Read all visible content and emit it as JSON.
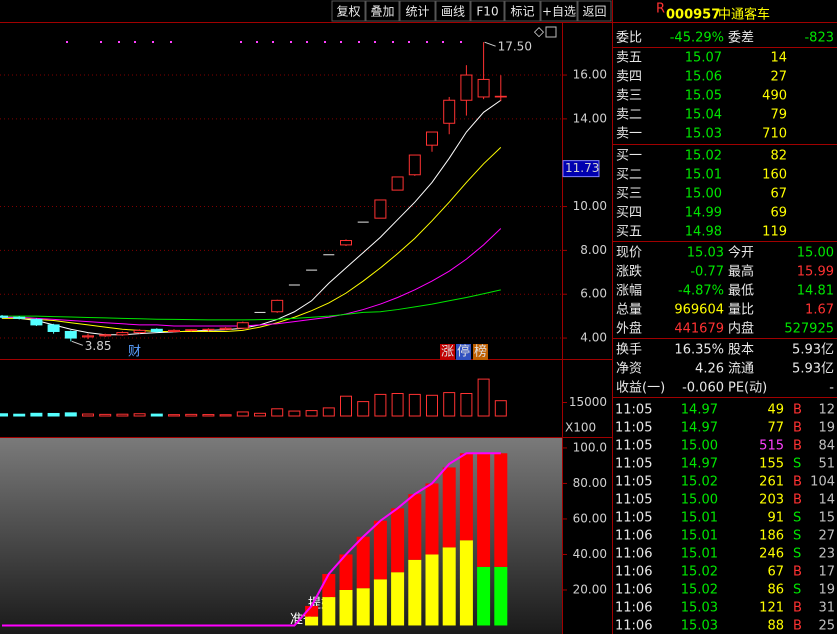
{
  "toolbar": [
    "复权",
    "叠加",
    "统计",
    "画线",
    "F10",
    "标记",
    "+自选",
    "返回"
  ],
  "main": {
    "ylim": [
      3.09,
      18.42
    ],
    "yticks": [
      {
        "value": 4,
        "label": "4.00"
      },
      {
        "value": 6,
        "label": "6.00"
      },
      {
        "value": 8,
        "label": "8.00"
      },
      {
        "value": 10,
        "label": "10.00"
      },
      {
        "value": 14,
        "label": "14.00"
      },
      {
        "value": 16,
        "label": "16.00"
      }
    ],
    "cursor": {
      "value": 11.73,
      "label": "11.73"
    },
    "candles": [
      {
        "open": 5.0,
        "high": 5.05,
        "low": 4.9,
        "close": 4.95
      },
      {
        "open": 4.95,
        "high": 5.0,
        "low": 4.85,
        "close": 4.9
      },
      {
        "open": 4.85,
        "high": 4.9,
        "low": 4.55,
        "close": 4.6
      },
      {
        "open": 4.6,
        "high": 4.65,
        "low": 4.2,
        "close": 4.3
      },
      {
        "open": 4.3,
        "high": 4.35,
        "low": 3.85,
        "close": 4.0
      },
      {
        "open": 4.05,
        "high": 4.2,
        "low": 3.95,
        "close": 4.1
      },
      {
        "open": 4.1,
        "high": 4.2,
        "low": 4.05,
        "close": 4.15
      },
      {
        "open": 4.15,
        "high": 4.3,
        "low": 4.1,
        "close": 4.25
      },
      {
        "open": 4.25,
        "high": 4.4,
        "low": 4.2,
        "close": 4.35
      },
      {
        "open": 4.4,
        "high": 4.45,
        "low": 4.25,
        "close": 4.3
      },
      {
        "open": 4.3,
        "high": 4.4,
        "low": 4.25,
        "close": 4.35
      },
      {
        "open": 4.35,
        "high": 4.4,
        "low": 4.3,
        "close": 4.38
      },
      {
        "open": 4.38,
        "high": 4.45,
        "low": 4.3,
        "close": 4.4
      },
      {
        "open": 4.4,
        "high": 4.5,
        "low": 4.35,
        "close": 4.45
      },
      {
        "open": 4.45,
        "high": 4.75,
        "low": 4.4,
        "close": 4.7
      },
      {
        "open": 5.17,
        "high": 5.17,
        "low": 5.17,
        "close": 5.17
      },
      {
        "open": 5.2,
        "high": 5.75,
        "low": 5.15,
        "close": 5.72
      },
      {
        "open": 6.42,
        "high": 6.42,
        "low": 6.42,
        "close": 6.42
      },
      {
        "open": 7.1,
        "high": 7.1,
        "low": 7.1,
        "close": 7.1
      },
      {
        "open": 7.8,
        "high": 7.8,
        "low": 7.8,
        "close": 7.8
      },
      {
        "open": 8.25,
        "high": 8.5,
        "low": 8.2,
        "close": 8.45
      },
      {
        "open": 9.29,
        "high": 9.29,
        "low": 9.29,
        "close": 9.29
      },
      {
        "open": 9.47,
        "high": 10.3,
        "low": 9.47,
        "close": 10.3
      },
      {
        "open": 10.75,
        "high": 11.35,
        "low": 10.75,
        "close": 11.35
      },
      {
        "open": 11.45,
        "high": 12.35,
        "low": 11.4,
        "close": 12.35
      },
      {
        "open": 12.8,
        "high": 13.4,
        "low": 12.5,
        "close": 13.4
      },
      {
        "open": 13.8,
        "high": 15.0,
        "low": 13.3,
        "close": 14.85
      },
      {
        "open": 14.85,
        "high": 16.45,
        "low": 14.15,
        "close": 16.0
      },
      {
        "open": 15.0,
        "high": 17.5,
        "low": 14.9,
        "close": 15.8
      },
      {
        "open": 15.0,
        "high": 15.99,
        "low": 14.81,
        "close": 15.03
      }
    ],
    "ma": [
      {
        "color": "#ffffff",
        "values": [
          4.95,
          4.9,
          4.8,
          4.6,
          4.4,
          4.25,
          4.15,
          4.15,
          4.2,
          4.25,
          4.28,
          4.32,
          4.35,
          4.38,
          4.45,
          4.6,
          4.85,
          5.2,
          5.7,
          6.5,
          7.2,
          7.9,
          8.6,
          9.4,
          10.2,
          11.1,
          12.2,
          13.4,
          14.3,
          14.85
        ]
      },
      {
        "color": "#ffff00",
        "values": [
          4.9,
          4.9,
          4.85,
          4.8,
          4.7,
          4.6,
          4.5,
          4.4,
          4.35,
          4.3,
          4.3,
          4.3,
          4.3,
          4.3,
          4.35,
          4.5,
          4.7,
          4.95,
          5.25,
          5.6,
          6.05,
          6.6,
          7.2,
          7.85,
          8.55,
          9.35,
          10.2,
          11.1,
          11.95,
          12.7
        ]
      },
      {
        "color": "#ff00ff",
        "values": [
          4.95,
          4.95,
          4.9,
          4.85,
          4.8,
          4.75,
          4.7,
          4.65,
          4.6,
          4.6,
          4.55,
          4.55,
          4.55,
          4.55,
          4.55,
          4.6,
          4.65,
          4.75,
          4.85,
          4.95,
          5.1,
          5.3,
          5.55,
          5.85,
          6.2,
          6.6,
          7.05,
          7.6,
          8.25,
          9.0
        ]
      },
      {
        "color": "#00e600",
        "values": [
          5.0,
          5.0,
          5.0,
          4.98,
          4.96,
          4.94,
          4.92,
          4.9,
          4.88,
          4.86,
          4.85,
          4.84,
          4.83,
          4.83,
          4.83,
          4.84,
          4.86,
          4.9,
          4.95,
          5.0,
          5.08,
          5.17,
          5.2,
          5.3,
          5.42,
          5.55,
          5.7,
          5.85,
          6.02,
          6.2
        ]
      }
    ],
    "annotations": [
      {
        "text": "17.50",
        "value": 17.5
      },
      {
        "text": "3.85",
        "value": 3.85
      }
    ],
    "badges": [
      "财",
      "涨",
      "停",
      "榜"
    ]
  },
  "volume": {
    "ylim": [
      0,
      60000
    ],
    "yticks": [
      15000
    ],
    "unit": "X100",
    "values": [
      2500,
      2000,
      3000,
      2800,
      3500,
      2200,
      1800,
      2000,
      2500,
      2100,
      1500,
      1800,
      1600,
      1400,
      4500,
      3000,
      8000,
      5500,
      6000,
      9000,
      22000,
      16000,
      24000,
      25000,
      24000,
      23000,
      26000,
      25000,
      41000,
      17000
    ]
  },
  "indicator": {
    "ylim": [
      -4.8,
      105.6
    ],
    "yticks": [
      {
        "value": 20,
        "label": "20.00"
      },
      {
        "value": 40,
        "label": "40.00"
      },
      {
        "value": 60,
        "label": "60.00"
      },
      {
        "value": 80,
        "label": "80.00"
      },
      {
        "value": 100,
        "label": "100.0"
      }
    ],
    "series": [
      {
        "color": "#ffff00",
        "values": [
          null,
          null,
          null,
          null,
          null,
          null,
          null,
          null,
          null,
          null,
          null,
          null,
          null,
          null,
          null,
          null,
          null,
          null,
          5,
          16,
          20,
          21,
          26,
          30,
          37,
          40,
          44,
          48,
          null,
          null
        ]
      },
      {
        "color": "#00ff00",
        "values": [
          null,
          null,
          null,
          null,
          null,
          null,
          null,
          null,
          null,
          null,
          null,
          null,
          null,
          null,
          null,
          null,
          null,
          null,
          null,
          null,
          null,
          null,
          null,
          null,
          null,
          null,
          null,
          null,
          33,
          33
        ]
      },
      {
        "color": "#ff0000",
        "values": [
          null,
          null,
          null,
          null,
          null,
          null,
          null,
          null,
          null,
          null,
          null,
          null,
          null,
          null,
          null,
          null,
          null,
          null,
          6,
          13,
          20,
          29,
          33,
          36,
          37,
          40,
          45,
          49,
          64,
          64
        ]
      }
    ],
    "line": {
      "color": "#ff00ff",
      "values": [
        0,
        0,
        0,
        0,
        0,
        0,
        0,
        0,
        0,
        0,
        0,
        0,
        0,
        0,
        0,
        0,
        0,
        0,
        11,
        29,
        40,
        50,
        59,
        66,
        74,
        80,
        91,
        97,
        97,
        97
      ]
    },
    "labels": [
      "提妖",
      "准备"
    ]
  },
  "quote": {
    "flag": "R",
    "code": "000957",
    "name": "中通客车",
    "order": [
      "委比",
      "-45.29%",
      "委差",
      "-823"
    ],
    "asks": [
      [
        "卖五",
        "15.07",
        "14"
      ],
      [
        "卖四",
        "15.06",
        "27"
      ],
      [
        "卖三",
        "15.05",
        "490"
      ],
      [
        "卖二",
        "15.04",
        "79"
      ],
      [
        "卖一",
        "15.03",
        "710"
      ]
    ],
    "bids": [
      [
        "买一",
        "15.02",
        "82"
      ],
      [
        "买二",
        "15.01",
        "160"
      ],
      [
        "买三",
        "15.00",
        "67"
      ],
      [
        "买四",
        "14.99",
        "69"
      ],
      [
        "买五",
        "14.98",
        "119"
      ]
    ],
    "stats": [
      [
        "现价",
        "15.03",
        "今开",
        "15.00"
      ],
      [
        "涨跌",
        "-0.77",
        "最高",
        "15.99"
      ],
      [
        "涨幅",
        "-4.87%",
        "最低",
        "14.81"
      ],
      [
        "总量",
        "969604",
        "量比",
        "1.67"
      ],
      [
        "外盘",
        "441679",
        "内盘",
        "527925"
      ]
    ],
    "fundamentals": [
      [
        "换手",
        "16.35%",
        "股本",
        "5.93亿"
      ],
      [
        "净资",
        "4.26",
        "流通",
        "5.93亿"
      ],
      [
        "收益(一)",
        "-0.060",
        "PE(动)",
        "-"
      ]
    ],
    "ticks": [
      [
        "11:05",
        "14.97",
        "49",
        "B",
        "12"
      ],
      [
        "11:05",
        "14.97",
        "77",
        "B",
        "19"
      ],
      [
        "11:05",
        "15.00",
        "515",
        "B",
        "84"
      ],
      [
        "11:05",
        "14.97",
        "155",
        "S",
        "51"
      ],
      [
        "11:05",
        "15.02",
        "261",
        "B",
        "104"
      ],
      [
        "11:05",
        "15.00",
        "203",
        "B",
        "14"
      ],
      [
        "11:05",
        "15.01",
        "91",
        "S",
        "15"
      ],
      [
        "11:06",
        "15.01",
        "186",
        "S",
        "27"
      ],
      [
        "11:06",
        "15.01",
        "246",
        "S",
        "23"
      ],
      [
        "11:06",
        "15.02",
        "67",
        "B",
        "17"
      ],
      [
        "11:06",
        "15.02",
        "86",
        "S",
        "19"
      ],
      [
        "11:06",
        "15.03",
        "121",
        "B",
        "31"
      ],
      [
        "11:06",
        "15.03",
        "88",
        "B",
        "25"
      ]
    ]
  }
}
